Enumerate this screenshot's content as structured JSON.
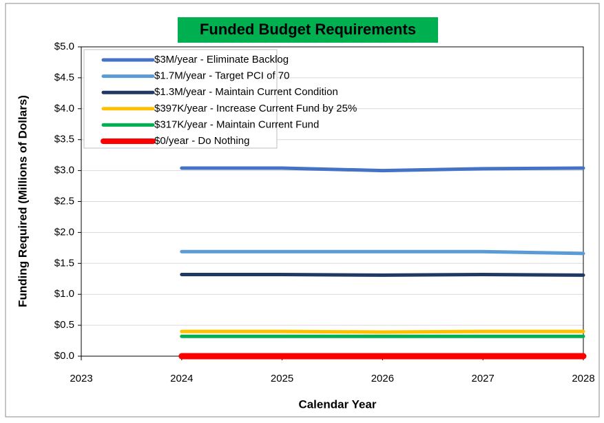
{
  "chart_data": {
    "type": "line",
    "title": "Funded Budget Requirements",
    "y_label": "Funding Required (Millions of Dollars)",
    "x_label": "Calendar Year",
    "x": [
      2024,
      2025,
      2026,
      2027,
      2028
    ],
    "series": [
      {
        "name": "$3M/year - Eliminate Backlog",
        "color": "#4472c4",
        "values": [
          3.04,
          3.04,
          3.0,
          3.03,
          3.04
        ]
      },
      {
        "name": "$1.7M/year - Target PCI of 70",
        "color": "#5b9bd5",
        "values": [
          1.69,
          1.69,
          1.69,
          1.69,
          1.66
        ]
      },
      {
        "name": "$1.3M/year - Maintain Current Condition",
        "color": "#203864",
        "values": [
          1.32,
          1.32,
          1.31,
          1.32,
          1.31
        ]
      },
      {
        "name": "$397K/year - Increase Current Fund by 25%",
        "color": "#ffc000",
        "values": [
          0.4,
          0.4,
          0.39,
          0.4,
          0.4
        ]
      },
      {
        "name": "$317K/year - Maintain Current Fund",
        "color": "#00b050",
        "values": [
          0.32,
          0.32,
          0.32,
          0.32,
          0.32
        ]
      },
      {
        "name": "$0/year - Do Nothing",
        "color": "#ff0000",
        "values": [
          0,
          0,
          0,
          0,
          0
        ]
      }
    ],
    "xlim": [
      2023,
      2028
    ],
    "xticks": [
      2023,
      2024,
      2025,
      2026,
      2027,
      2028
    ],
    "ylim": [
      0,
      5
    ],
    "yticks": [
      {
        "value": 0,
        "label": "$0.0"
      },
      {
        "value": 0.5,
        "label": "$0.5"
      },
      {
        "value": 1,
        "label": "$1.0"
      },
      {
        "value": 1.5,
        "label": "$1.5"
      },
      {
        "value": 2,
        "label": "$2.0"
      },
      {
        "value": 2.5,
        "label": "$2.5"
      },
      {
        "value": 3,
        "label": "$3.0"
      },
      {
        "value": 3.5,
        "label": "$3.5"
      },
      {
        "value": 4,
        "label": "$4.0"
      },
      {
        "value": 4.5,
        "label": "$4.5"
      },
      {
        "value": 5,
        "label": "$5.0"
      }
    ],
    "grid": true,
    "legend": "upper left"
  }
}
